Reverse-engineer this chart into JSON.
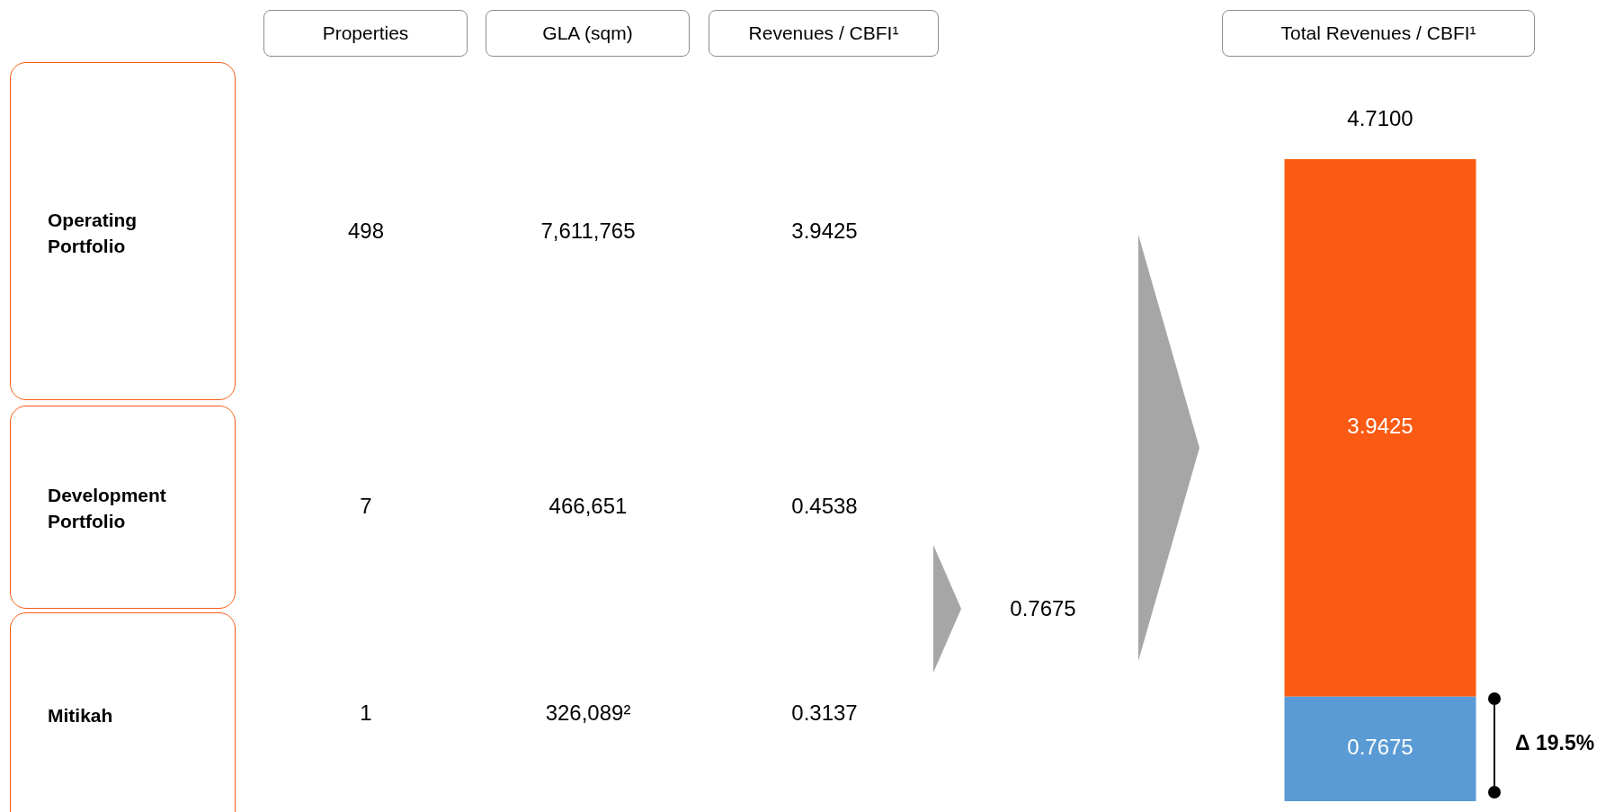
{
  "chart_data": [
    {
      "type": "other",
      "categories": [
        "Properties",
        "GLA (sqm)",
        "Revenues / CBFI¹"
      ],
      "y_categories": [
        "Operating Portfolio",
        "Development Portfolio",
        "Mitikah"
      ],
      "cell_labels": [
        [
          "498",
          "7,611,765",
          "3.9425"
        ],
        [
          "7",
          "466,651",
          "0.4538"
        ],
        [
          "1",
          "326,089²",
          "0.3137"
        ]
      ],
      "annotations": [
        "0.7675"
      ]
    },
    {
      "type": "bar",
      "title": "Total Revenues / CBFI¹",
      "categories": [
        null
      ],
      "stacked": true,
      "series": [
        {
          "color": "#5b9bd5",
          "values": [
            0.7675
          ]
        },
        {
          "color": "#fa5a14",
          "values": [
            3.9425
          ]
        }
      ],
      "data_labels": true,
      "totals": [
        "4.7100"
      ],
      "legend": false,
      "annotations": [
        "Δ 19.5%"
      ]
    }
  ]
}
